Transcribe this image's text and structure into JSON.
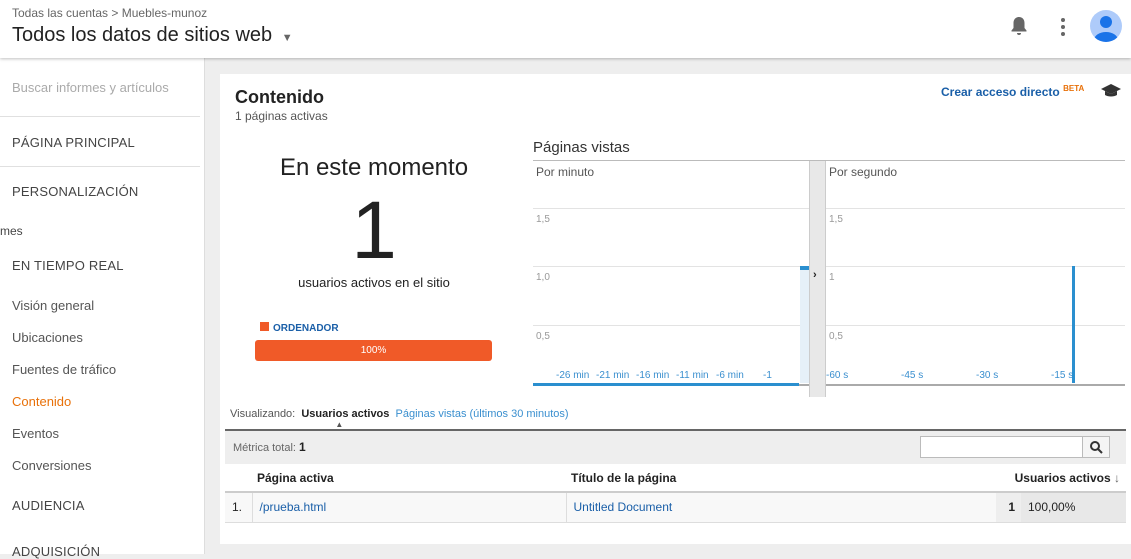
{
  "header": {
    "breadcrumb_root": "Todas las cuentas",
    "breadcrumb_sep": ">",
    "breadcrumb_account": "Muebles-munoz",
    "view_title": "Todos los datos de sitios web"
  },
  "sidebar": {
    "search_placeholder": "Buscar informes y artículos",
    "home": "PÁGINA PRINCIPAL",
    "custom": "PERSONALIZACIÓN",
    "partial": "mes",
    "realtime": "EN TIEMPO REAL",
    "items": [
      {
        "label": "Visión general"
      },
      {
        "label": "Ubicaciones"
      },
      {
        "label": "Fuentes de tráfico"
      },
      {
        "label": "Contenido",
        "active": true
      },
      {
        "label": "Eventos"
      },
      {
        "label": "Conversiones"
      }
    ],
    "audience": "AUDIENCIA",
    "acquisition": "ADQUISICIÓN"
  },
  "card": {
    "title": "Contenido",
    "subtitle": "1 páginas activas",
    "shortcut": "Crear acceso directo",
    "beta": "BETA"
  },
  "now": {
    "heading": "En este momento",
    "count": "1",
    "label": "usuarios activos en el sitio",
    "device": "ORDENADOR",
    "device_percent": "100%",
    "device_fraction": 1.0,
    "device_color": "#f05a28"
  },
  "pageviews": {
    "title": "Páginas vistas",
    "minute_label": "Por minuto",
    "second_label": "Por segundo"
  },
  "chart_data": [
    {
      "type": "bar",
      "title": "Por minuto",
      "yticks": [
        "1,5",
        "1,0",
        "0,5"
      ],
      "ylim": [
        0,
        1.5
      ],
      "categories": [
        "-26 min",
        "-21 min",
        "-16 min",
        "-11 min",
        "-6 min",
        "-1"
      ],
      "x": [
        -30,
        -29,
        -28,
        -27,
        -26,
        -25,
        -24,
        -23,
        -22,
        -21,
        -20,
        -19,
        -18,
        -17,
        -16,
        -15,
        -14,
        -13,
        -12,
        -11,
        -10,
        -9,
        -8,
        -7,
        -6,
        -5,
        -4,
        -3,
        -2,
        -1
      ],
      "values": [
        0,
        0,
        0,
        0,
        0,
        0,
        0,
        0,
        0,
        0,
        0,
        0,
        0,
        0,
        0,
        0,
        0,
        0,
        0,
        0,
        0,
        0,
        0,
        0,
        0,
        0,
        0,
        0,
        0,
        1
      ]
    },
    {
      "type": "bar",
      "title": "Por segundo",
      "yticks": [
        "1,5",
        "1",
        "0,5"
      ],
      "ylim": [
        0,
        1.5
      ],
      "categories": [
        "-60 s",
        "-45 s",
        "-30 s",
        "-15 s"
      ],
      "x": [
        -11
      ],
      "values": [
        1
      ]
    }
  ],
  "viewing": {
    "label": "Visualizando:",
    "active_tab": "Usuarios activos",
    "other_tab": "Páginas vistas (últimos 30 minutos)"
  },
  "table": {
    "total_label": "Métrica total:",
    "total": "1",
    "headers": [
      "Página activa",
      "Título de la página",
      "Usuarios activos"
    ],
    "rows": [
      {
        "index": "1.",
        "page": "/prueba.html",
        "title": "Untitled Document",
        "users": "1",
        "percent": "100,00%"
      }
    ]
  }
}
